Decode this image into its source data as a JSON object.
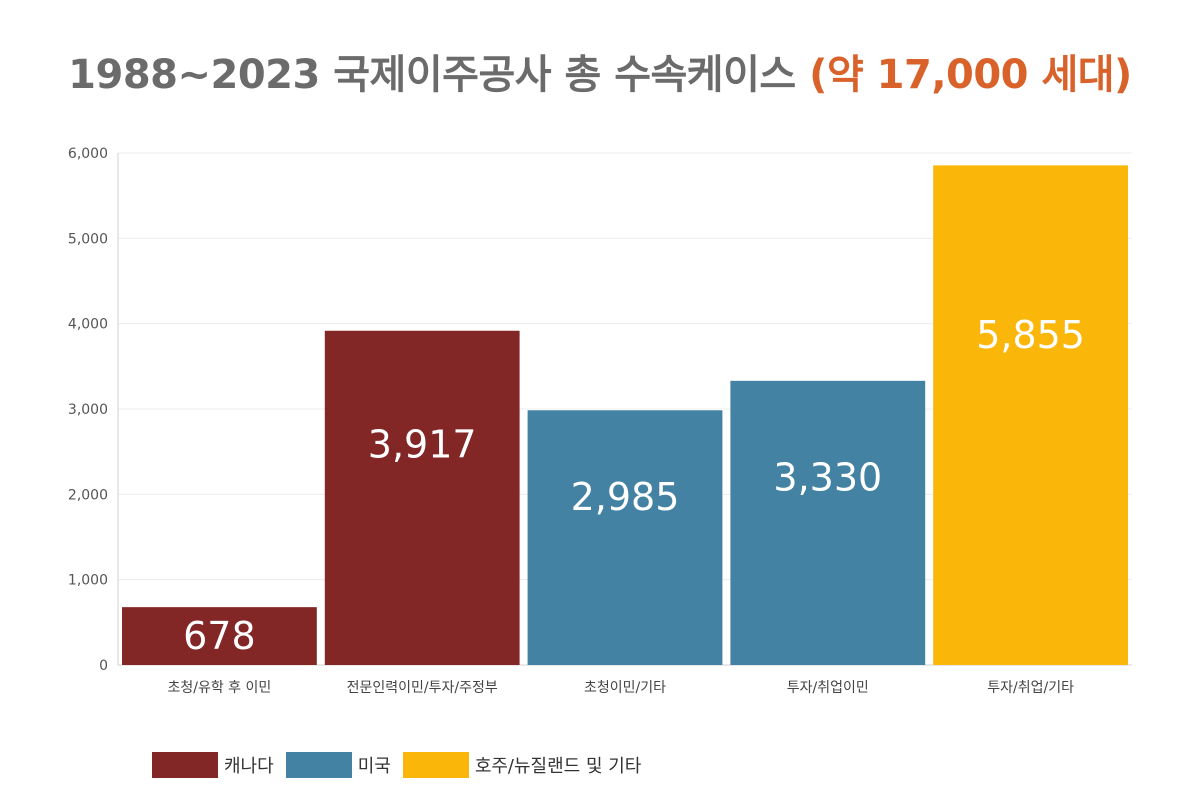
{
  "title": {
    "main": "1988~2023 국제이주공사 총 수속케이스",
    "highlight": "(약 17,000 세대)"
  },
  "colors": {
    "title_text": "#6b6b6b",
    "title_highlight": "#d9622b",
    "canada": "#832626",
    "usa": "#4382a3",
    "australia_nz_other": "#fbb60a"
  },
  "chart_data": {
    "type": "bar",
    "categories": [
      "초청/유학 후 이민",
      "전문인력이민/투자/주정부",
      "초청이민/기타",
      "투자/취업이민",
      "투자/취업/기타"
    ],
    "values": [
      678,
      3917,
      2985,
      3330,
      5855
    ],
    "data_labels": [
      "678",
      "3,917",
      "2,985",
      "3,330",
      "5,855"
    ],
    "bar_groups": [
      "캐나다",
      "캐나다",
      "미국",
      "미국",
      "호주/뉴질랜드 및 기타"
    ],
    "ylim": [
      0,
      6000
    ],
    "yticks": [
      0,
      1000,
      2000,
      3000,
      4000,
      5000,
      6000
    ],
    "ytick_labels": [
      "0",
      "1,000",
      "2,000",
      "3,000",
      "4,000",
      "5,000",
      "6,000"
    ],
    "grid": true,
    "legend_position": "bottom-left",
    "legend": [
      {
        "name": "캐나다",
        "color": "#832626"
      },
      {
        "name": "미국",
        "color": "#4382a3"
      },
      {
        "name": "호주/뉴질랜드 및 기타",
        "color": "#fbb60a"
      }
    ]
  }
}
